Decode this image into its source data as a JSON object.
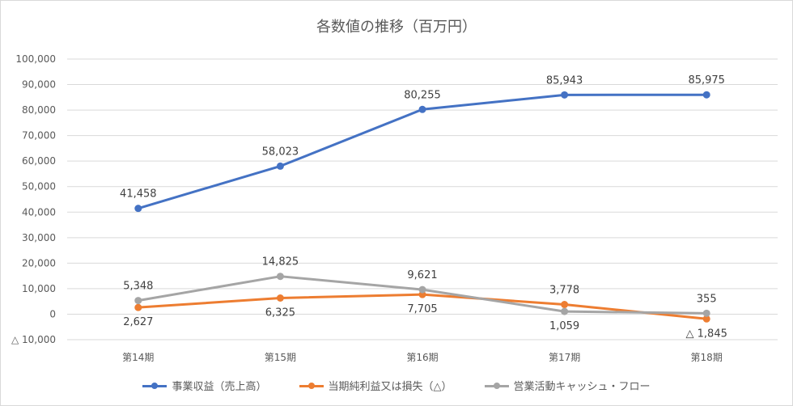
{
  "chart_data": {
    "type": "line",
    "title": "各数値の推移（百万円）",
    "categories": [
      "第14期",
      "第15期",
      "第16期",
      "第17期",
      "第18期"
    ],
    "ylim": [
      -10000,
      100000
    ],
    "yticks": [
      -10000,
      0,
      10000,
      20000,
      30000,
      40000,
      50000,
      60000,
      70000,
      80000,
      90000,
      100000
    ],
    "ytick_labels": [
      "△ 10,000",
      "0",
      "10,000",
      "20,000",
      "30,000",
      "40,000",
      "50,000",
      "60,000",
      "70,000",
      "80,000",
      "90,000",
      "100,000"
    ],
    "grid": true,
    "legend_position": "bottom",
    "series": [
      {
        "name": "事業収益（売上高）",
        "color": "#4472c4",
        "values": [
          41458,
          58023,
          80255,
          85943,
          85975
        ],
        "labels": [
          "41,458",
          "58,023",
          "80,255",
          "85,943",
          "85,975"
        ],
        "label_side": [
          "above",
          "above",
          "above",
          "above",
          "above"
        ]
      },
      {
        "name": "当期純利益又は損失（△）",
        "color": "#ed7d31",
        "values": [
          2627,
          6325,
          7705,
          3778,
          -1845
        ],
        "labels": [
          "2,627",
          "6,325",
          "7,705",
          "3,778",
          "△ 1,845"
        ],
        "label_side": [
          "below",
          "below",
          "below",
          "above",
          "below"
        ]
      },
      {
        "name": "営業活動キャッシュ・フロー",
        "color": "#a5a5a5",
        "values": [
          5348,
          14825,
          9621,
          1059,
          355
        ],
        "labels": [
          "5,348",
          "14,825",
          "9,621",
          "1,059",
          "355"
        ],
        "label_side": [
          "above",
          "above",
          "above",
          "below",
          "above"
        ]
      }
    ]
  }
}
